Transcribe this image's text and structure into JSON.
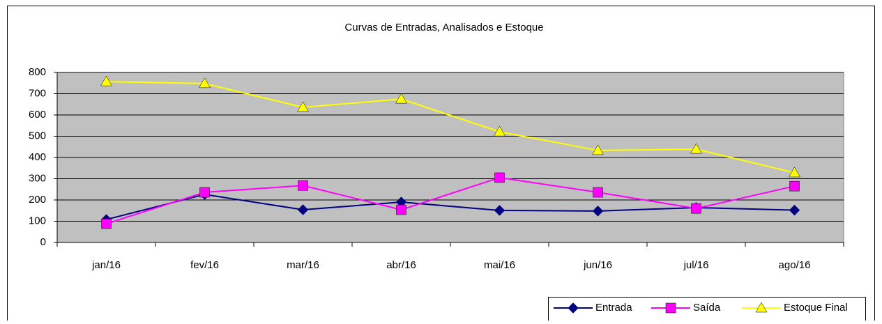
{
  "chart_data": {
    "type": "line",
    "title": "Curvas de Entradas, Analisados e Estoque",
    "categories": [
      "jan/16",
      "fev/16",
      "mar/16",
      "abr/16",
      "mai/16",
      "jun/16",
      "jul/16",
      "ago/16"
    ],
    "series": [
      {
        "name": "Entrada",
        "color": "#000080",
        "marker": "diamond",
        "values": [
          108,
          226,
          154,
          190,
          151,
          148,
          164,
          152
        ]
      },
      {
        "name": "Saída",
        "color": "#ff00ff",
        "marker": "square",
        "values": [
          88,
          236,
          268,
          154,
          305,
          236,
          160,
          265
        ]
      },
      {
        "name": "Estoque Final",
        "color": "#ffff00",
        "marker": "triangle",
        "values": [
          757,
          748,
          636,
          675,
          521,
          433,
          439,
          328
        ]
      }
    ],
    "ylim": [
      0,
      800
    ],
    "yticks": [
      0,
      100,
      200,
      300,
      400,
      500,
      600,
      700,
      800
    ],
    "grid": true,
    "legend": "bottom-right"
  }
}
